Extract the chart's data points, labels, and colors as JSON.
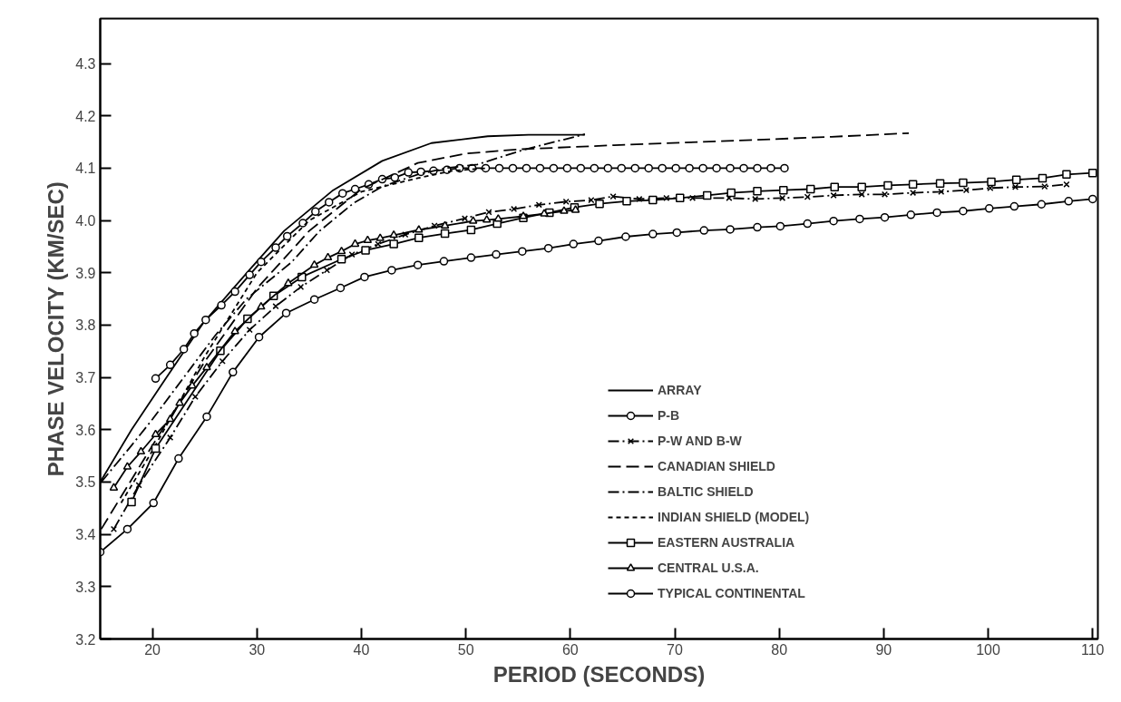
{
  "chart_data": {
    "type": "line",
    "xlabel": "PERIOD (SECONDS)",
    "ylabel": "PHASE VELOCITY (KM/SEC)",
    "xlim": [
      15,
      110.5
    ],
    "ylim": [
      3.2,
      4.386
    ],
    "xticks": [
      20,
      30,
      40,
      50,
      60,
      70,
      80,
      90,
      100,
      110
    ],
    "yticks": [
      3.2,
      3.3,
      3.4,
      3.5,
      3.6,
      3.7,
      3.8,
      3.9,
      {
        "value": 4,
        "label": "4.0"
      },
      4.1,
      4.2,
      4.3
    ],
    "grid": false,
    "legend": "right",
    "series": [
      {
        "name": "ARRAY",
        "color": "#000000",
        "line_style": "solid",
        "marker": "none",
        "x": [
          15,
          18,
          21,
          24.9,
          29.3,
          32.6,
          37.3,
          42.0,
          46.7,
          52.1,
          56,
          61.4
        ],
        "values": [
          3.5,
          3.6,
          3.69,
          3.805,
          3.906,
          3.98,
          4.058,
          4.114,
          4.148,
          4.161,
          4.164,
          4.164
        ]
      },
      {
        "name": "P-B",
        "color": "#000000",
        "line_style": "solid",
        "marker": "circle",
        "x": [
          20.3,
          21.7,
          23.0,
          24.0,
          25.1,
          26.6,
          27.9,
          29.3,
          30.4,
          31.8,
          32.9,
          34.4,
          35.6,
          36.9,
          38.2,
          39.4,
          40.7,
          42.0,
          43.2,
          44.5,
          45.7,
          46.9,
          48.2,
          49.4,
          50.6,
          51.9,
          53.2,
          54.5,
          55.8,
          57.1,
          58.4,
          59.7,
          61.0,
          62.3,
          63.6,
          64.9,
          66.2,
          67.5,
          68.8,
          70.1,
          71.4,
          72.7,
          74.0,
          75.3,
          76.6,
          77.9,
          79.2,
          80.5
        ],
        "values": [
          3.698,
          3.724,
          3.754,
          3.784,
          3.81,
          3.838,
          3.864,
          3.896,
          3.921,
          3.948,
          3.97,
          3.995,
          4.017,
          4.035,
          4.052,
          4.06,
          4.069,
          4.079,
          4.082,
          4.092,
          4.093,
          4.095,
          4.097,
          4.1,
          4.1,
          4.1,
          4.1,
          4.1,
          4.1,
          4.1,
          4.1,
          4.1,
          4.1,
          4.1,
          4.1,
          4.1,
          4.1,
          4.1,
          4.1,
          4.1,
          4.1,
          4.1,
          4.1,
          4.1,
          4.1,
          4.1,
          4.1,
          4.1
        ]
      },
      {
        "name": "P-W AND B-W",
        "color": "#000000",
        "line_style": "dashdot",
        "marker": "cross",
        "x": [
          16.3,
          18.7,
          21.7,
          24.1,
          26.7,
          29.3,
          31.8,
          34.2,
          36.7,
          39.1,
          41.6,
          44.2,
          47.0,
          49.9,
          52.2,
          54.6,
          57.0,
          59.6,
          62.0,
          64.1,
          66.6,
          69.2,
          71.7,
          75.2,
          77.7,
          80.3,
          82.7,
          85.2,
          87.9,
          90.1,
          92.8,
          95.5,
          97.9,
          100.2,
          102.6,
          105.4,
          107.5
        ],
        "values": [
          3.41,
          3.494,
          3.585,
          3.663,
          3.731,
          3.791,
          3.836,
          3.873,
          3.905,
          3.935,
          3.955,
          3.973,
          3.99,
          4.004,
          4.016,
          4.022,
          4.03,
          4.036,
          4.039,
          4.046,
          4.041,
          4.043,
          4.043,
          4.043,
          4.041,
          4.043,
          4.045,
          4.048,
          4.05,
          4.05,
          4.053,
          4.055,
          4.058,
          4.062,
          4.064,
          4.065,
          4.069
        ]
      },
      {
        "name": "CANADIAN SHIELD",
        "color": "#000000",
        "line_style": "dashed",
        "marker": "none",
        "x": [
          15.1,
          20,
          25,
          30,
          35,
          40,
          45.4,
          50,
          55,
          64.2,
          75,
          85,
          92.4
        ],
        "values": [
          3.41,
          3.57,
          3.73,
          3.87,
          3.98,
          4.06,
          4.11,
          4.128,
          4.136,
          4.144,
          4.152,
          4.16,
          4.167
        ]
      },
      {
        "name": "BALTIC SHIELD",
        "color": "#000000",
        "line_style": "dashdot",
        "marker": "none",
        "x": [
          15.1,
          18,
          20,
          23,
          26,
          29,
          33.3,
          36,
          39.3,
          42,
          45.4,
          48,
          51.1,
          55.5,
          61.4
        ],
        "values": [
          3.5,
          3.57,
          3.62,
          3.7,
          3.78,
          3.85,
          3.92,
          3.98,
          4.034,
          4.065,
          4.088,
          4.1,
          4.107,
          4.135,
          4.165
        ]
      },
      {
        "name": "INDIAN SHIELD (MODEL)",
        "color": "#000000",
        "line_style": "dotted",
        "marker": "none",
        "x": [
          17,
          20,
          25,
          30,
          35,
          40,
          45.4,
          48.7,
          52
        ],
        "values": [
          3.46,
          3.56,
          3.74,
          3.9,
          4.0,
          4.055,
          4.081,
          4.095,
          4.1
        ]
      },
      {
        "name": "EASTERN AUSTRALIA",
        "color": "#000000",
        "line_style": "solid",
        "marker": "square",
        "x": [
          18.0,
          20.3,
          26.5,
          29.1,
          31.6,
          34.3,
          38.1,
          40.4,
          43.1,
          45.5,
          48.0,
          50.5,
          53.0,
          55.5,
          58.0,
          60.4,
          62.8,
          65.4,
          67.9,
          70.5,
          73.1,
          75.4,
          77.9,
          80.4,
          83.0,
          85.3,
          87.9,
          90.4,
          92.8,
          95.4,
          97.6,
          100.3,
          102.7,
          105.2,
          107.5,
          110
        ],
        "values": [
          3.462,
          3.564,
          3.751,
          3.812,
          3.856,
          3.892,
          3.926,
          3.943,
          3.955,
          3.967,
          3.975,
          3.982,
          3.994,
          4.005,
          4.015,
          4.025,
          4.032,
          4.037,
          4.039,
          4.043,
          4.048,
          4.053,
          4.056,
          4.058,
          4.06,
          4.064,
          4.064,
          4.067,
          4.069,
          4.071,
          4.072,
          4.074,
          4.078,
          4.081,
          4.088,
          4.091
        ]
      },
      {
        "name": "CENTRAL U.S.A.",
        "color": "#000000",
        "line_style": "solid",
        "marker": "triangle",
        "x": [
          16.3,
          17.6,
          18.9,
          20.3,
          21.7,
          22.6,
          23.8,
          25.2,
          27.9,
          30.4,
          33.0,
          35.5,
          36.8,
          38.1,
          39.4,
          40.6,
          41.8,
          43.1,
          45.5,
          48.0,
          50.7,
          52.0,
          53.1,
          55.5,
          57.5,
          59.4,
          60.5
        ],
        "values": [
          3.489,
          3.529,
          3.558,
          3.591,
          3.62,
          3.651,
          3.684,
          3.719,
          3.788,
          3.835,
          3.88,
          3.915,
          3.929,
          3.941,
          3.955,
          3.962,
          3.966,
          3.972,
          3.982,
          3.99,
          3.999,
          4.001,
          4.003,
          4.008,
          4.013,
          4.018,
          4.02
        ]
      },
      {
        "name": "TYPICAL CONTINENTAL",
        "color": "#000000",
        "line_style": "solid",
        "marker": "circle",
        "x": [
          15,
          17.6,
          20.1,
          22.5,
          25.2,
          27.7,
          30.2,
          32.8,
          35.5,
          38.0,
          40.3,
          42.9,
          45.4,
          47.9,
          50.5,
          52.9,
          55.4,
          57.9,
          60.3,
          62.7,
          65.3,
          67.9,
          70.2,
          72.8,
          75.3,
          77.9,
          80.1,
          82.7,
          85.2,
          87.7,
          90.1,
          92.6,
          95.1,
          97.6,
          100.1,
          102.5,
          105.1,
          107.7,
          110
        ],
        "values": [
          3.366,
          3.41,
          3.46,
          3.545,
          3.625,
          3.71,
          3.777,
          3.823,
          3.849,
          3.871,
          3.892,
          3.905,
          3.915,
          3.922,
          3.929,
          3.935,
          3.941,
          3.947,
          3.955,
          3.961,
          3.969,
          3.974,
          3.977,
          3.981,
          3.983,
          3.987,
          3.989,
          3.994,
          3.999,
          4.003,
          4.006,
          4.011,
          4.015,
          4.018,
          4.023,
          4.027,
          4.031,
          4.037,
          4.041
        ]
      }
    ]
  }
}
